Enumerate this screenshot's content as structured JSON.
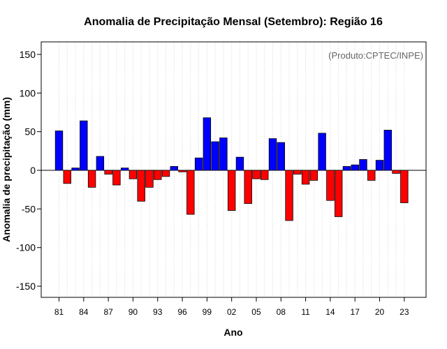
{
  "chart_data": {
    "type": "bar",
    "title": "Anomalia de Precipitação Mensal (Setembro): Região 16",
    "xlabel": "Ano",
    "ylabel": "Anomalia de precipitação (mm)",
    "annotation": "(Produto:CPTEC/INPE)",
    "ylim": [
      -165,
      168
    ],
    "yticks": [
      -150,
      -100,
      -50,
      0,
      50,
      100,
      150
    ],
    "xtick_labels": [
      "81",
      "84",
      "87",
      "90",
      "93",
      "96",
      "99",
      "02",
      "05",
      "08",
      "11",
      "14",
      "17",
      "20",
      "23"
    ],
    "categories": [
      1981,
      1982,
      1983,
      1984,
      1985,
      1986,
      1987,
      1988,
      1989,
      1990,
      1991,
      1992,
      1993,
      1994,
      1995,
      1996,
      1997,
      1998,
      1999,
      2000,
      2001,
      2002,
      2003,
      2004,
      2005,
      2006,
      2007,
      2008,
      2009,
      2010,
      2011,
      2012,
      2013,
      2014,
      2015,
      2016,
      2017,
      2018,
      2019,
      2020,
      2021,
      2022,
      2023
    ],
    "values": [
      51,
      -17,
      3,
      64,
      -22,
      18,
      -5,
      -19,
      3,
      -11,
      -40,
      -22,
      -12,
      -8,
      5,
      -2,
      -57,
      16,
      68,
      37,
      42,
      -52,
      17,
      -43,
      -11,
      -12,
      41,
      36,
      -65,
      -5,
      -18,
      -13,
      48,
      -39,
      -60,
      5,
      7,
      14,
      -13,
      13,
      52,
      -4,
      -42
    ],
    "positive_color": "#0000ff",
    "negative_color": "#ff0000",
    "grid": true,
    "legend": "none"
  }
}
